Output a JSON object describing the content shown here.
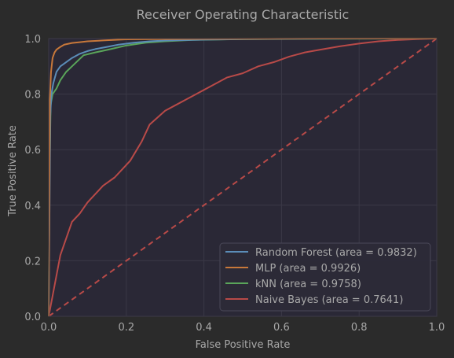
{
  "colors": {
    "figure_bg": "#2b2b2b",
    "axes_bg": "#2a2836",
    "text": "#a8a8a8",
    "grid": "#3a3846",
    "legend_bg": "#2c2a38",
    "legend_border": "#4a4858"
  },
  "chart_data": {
    "type": "line",
    "title": "Receiver Operating Characteristic",
    "xlabel": "False Positive Rate",
    "ylabel": "True Positive Rate",
    "xlim": [
      0.0,
      1.0
    ],
    "ylim": [
      0.0,
      1.0
    ],
    "xticks": [
      "0.0",
      "0.2",
      "0.4",
      "0.6",
      "0.8",
      "1.0"
    ],
    "yticks": [
      "0.0",
      "0.2",
      "0.4",
      "0.6",
      "0.8",
      "1.0"
    ],
    "grid": true,
    "legend_position": "lower-right",
    "series": [
      {
        "name": "Random Forest (area = 0.9832)",
        "color": "#5b8db8",
        "x": [
          0,
          0.004,
          0.007,
          0.012,
          0.02,
          0.03,
          0.04,
          0.06,
          0.08,
          0.1,
          0.12,
          0.15,
          0.18,
          0.22,
          0.26,
          0.3,
          0.4,
          0.5,
          0.6,
          0.8,
          1.0
        ],
        "y": [
          0,
          0.72,
          0.8,
          0.84,
          0.88,
          0.9,
          0.91,
          0.93,
          0.945,
          0.955,
          0.962,
          0.97,
          0.978,
          0.985,
          0.99,
          0.993,
          0.996,
          0.998,
          0.999,
          1.0,
          1.0
        ]
      },
      {
        "name": "MLP (area = 0.9926)",
        "color": "#c8783a",
        "x": [
          0,
          0.003,
          0.006,
          0.01,
          0.015,
          0.02,
          0.03,
          0.04,
          0.06,
          0.08,
          0.1,
          0.15,
          0.2,
          0.3,
          0.5,
          0.7,
          1.0
        ],
        "y": [
          0,
          0.78,
          0.88,
          0.93,
          0.95,
          0.96,
          0.97,
          0.978,
          0.984,
          0.987,
          0.99,
          0.994,
          0.997,
          0.998,
          0.999,
          1.0,
          1.0
        ]
      },
      {
        "name": "kNN (area = 0.9758)",
        "color": "#5aa55a",
        "x": [
          0,
          0.002,
          0.005,
          0.01,
          0.02,
          0.03,
          0.045,
          0.06,
          0.09,
          0.12,
          0.16,
          0.2,
          0.25,
          0.3,
          0.37,
          0.5,
          0.7,
          1.0
        ],
        "y": [
          0,
          0.5,
          0.76,
          0.8,
          0.82,
          0.85,
          0.88,
          0.9,
          0.94,
          0.95,
          0.962,
          0.975,
          0.985,
          0.99,
          0.995,
          0.998,
          0.999,
          1.0
        ]
      },
      {
        "name": "Naive Bayes (area = 0.7641)",
        "color": "#b84a48",
        "x": [
          0,
          0.03,
          0.06,
          0.08,
          0.1,
          0.12,
          0.14,
          0.17,
          0.19,
          0.21,
          0.24,
          0.26,
          0.3,
          0.34,
          0.38,
          0.42,
          0.46,
          0.5,
          0.54,
          0.58,
          0.62,
          0.66,
          0.7,
          0.75,
          0.8,
          0.85,
          0.9,
          0.95,
          1.0
        ],
        "y": [
          0,
          0.22,
          0.34,
          0.37,
          0.41,
          0.44,
          0.47,
          0.5,
          0.53,
          0.56,
          0.63,
          0.69,
          0.74,
          0.77,
          0.8,
          0.83,
          0.86,
          0.875,
          0.9,
          0.915,
          0.935,
          0.95,
          0.96,
          0.972,
          0.982,
          0.99,
          0.995,
          0.998,
          1.0
        ]
      }
    ],
    "reference_line": {
      "color": "#b84a48",
      "x": [
        0,
        1
      ],
      "y": [
        0,
        1
      ]
    }
  }
}
